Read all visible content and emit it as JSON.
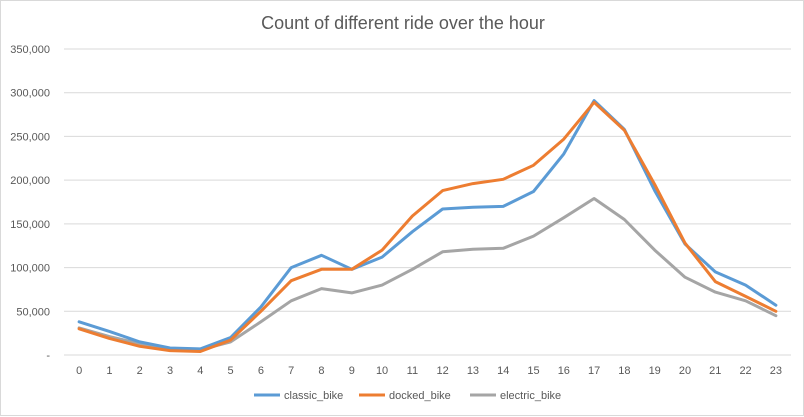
{
  "chart_data": {
    "type": "line",
    "title": "Count of different ride over the hour",
    "xlabel": "",
    "ylabel": "",
    "categories": [
      "0",
      "1",
      "2",
      "3",
      "4",
      "5",
      "6",
      "7",
      "8",
      "9",
      "10",
      "11",
      "12",
      "13",
      "14",
      "15",
      "16",
      "17",
      "18",
      "19",
      "20",
      "21",
      "22",
      "23"
    ],
    "ylim": [
      0,
      350000
    ],
    "yticks": [
      0,
      50000,
      100000,
      150000,
      200000,
      250000,
      300000,
      350000
    ],
    "ytick_labels": [
      "-",
      "50,000",
      "100,000",
      "150,000",
      "200,000",
      "250,000",
      "300,000",
      "350,000"
    ],
    "grid": true,
    "legend": "bottom",
    "series": [
      {
        "name": "classic_bike",
        "color": "#5b9bd5",
        "values": [
          38000,
          27000,
          15000,
          8000,
          7000,
          20000,
          55000,
          100000,
          114000,
          98000,
          112000,
          141000,
          167000,
          169000,
          170000,
          187000,
          230000,
          291000,
          258000,
          188000,
          127000,
          95000,
          80000,
          57000
        ]
      },
      {
        "name": "docked_bike",
        "color": "#ed7d31",
        "values": [
          30000,
          19000,
          10000,
          5000,
          4000,
          17000,
          50000,
          85000,
          98000,
          98000,
          120000,
          159000,
          188000,
          196000,
          201000,
          217000,
          247000,
          289000,
          257000,
          195000,
          128000,
          84000,
          67000,
          50000
        ]
      },
      {
        "name": "electric_bike",
        "color": "#a5a5a5",
        "values": [
          31000,
          21000,
          13000,
          7000,
          6000,
          15000,
          38000,
          62000,
          76000,
          71000,
          80000,
          98000,
          118000,
          121000,
          122000,
          136000,
          157000,
          179000,
          155000,
          120000,
          89000,
          72000,
          62000,
          45000
        ]
      }
    ]
  }
}
